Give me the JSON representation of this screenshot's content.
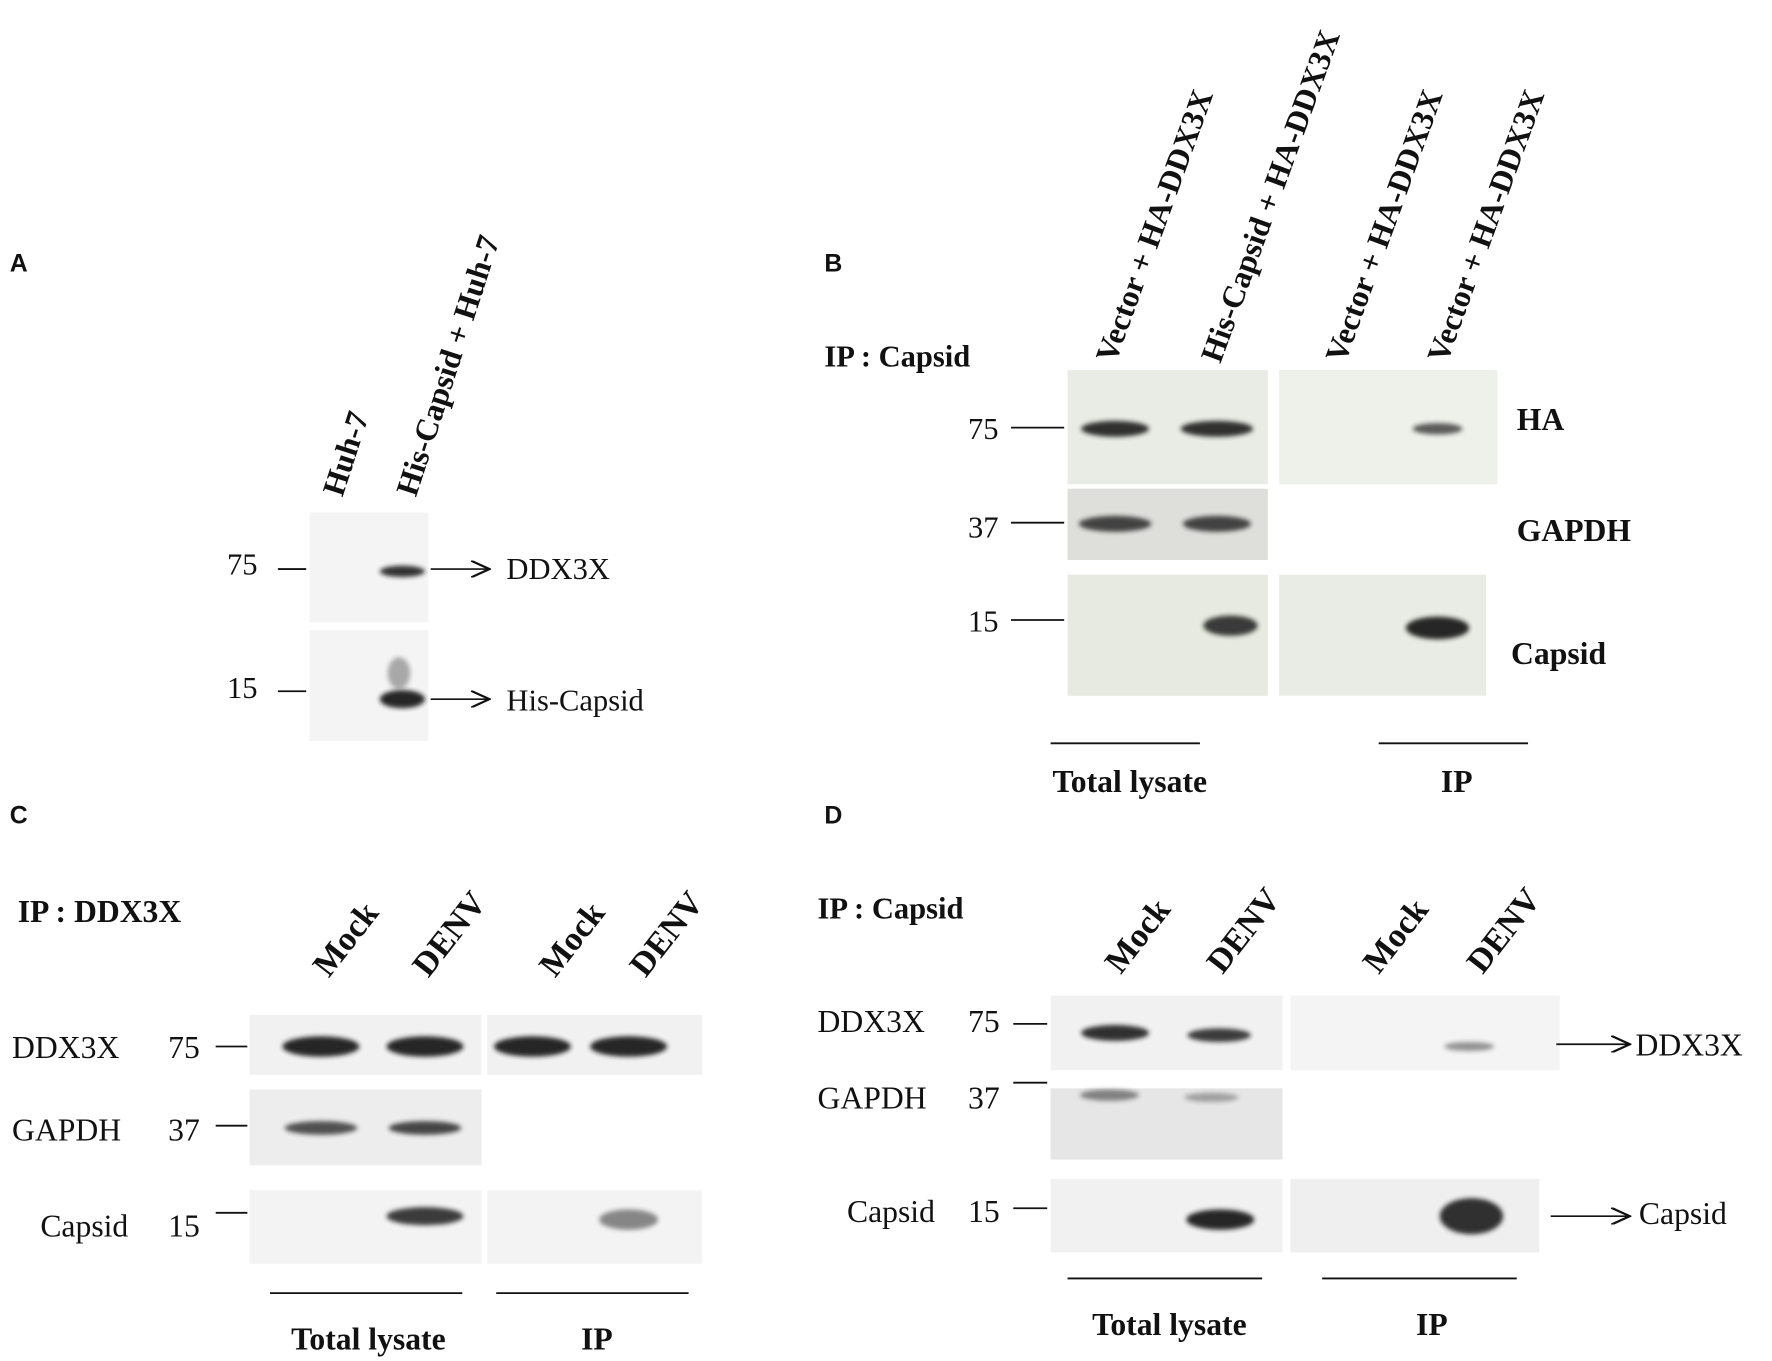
{
  "panels": [
    {
      "label": "A",
      "lanes": [
        "Huh-7",
        "His-Capsid + Huh-7"
      ],
      "markers": [
        75,
        15
      ],
      "bands": [
        "DDX3X",
        "His-Capsid"
      ]
    },
    {
      "label": "B",
      "ip": "IP : Capsid",
      "lanes": [
        "Vector + HA-DDX3X",
        "His-Capsid + HA-DDX3X",
        "Vector + HA-DDX3X",
        "Vector + HA-DDX3X"
      ],
      "markers": [
        75,
        37,
        15
      ],
      "bands": [
        "HA",
        "GAPDH",
        "Capsid"
      ],
      "groups": [
        "Total lysate",
        "IP"
      ]
    },
    {
      "label": "C",
      "ip": "IP : DDX3X",
      "lanes": [
        "Mock",
        "DENV",
        "Mock",
        "DENV"
      ],
      "markers": [
        75,
        37,
        15
      ],
      "proteins": [
        "DDX3X",
        "GAPDH",
        "Capsid"
      ],
      "groups": [
        "Total lysate",
        "IP"
      ]
    },
    {
      "label": "D",
      "ip": "IP : Capsid",
      "lanes": [
        "Mock",
        "DENV",
        "Mock",
        "DENV"
      ],
      "markers": [
        75,
        37,
        15
      ],
      "proteins": [
        "DDX3X",
        "GAPDH",
        "Capsid"
      ],
      "bands": [
        "DDX3X",
        "Capsid"
      ],
      "groups": [
        "Total lysate",
        "IP"
      ]
    }
  ]
}
